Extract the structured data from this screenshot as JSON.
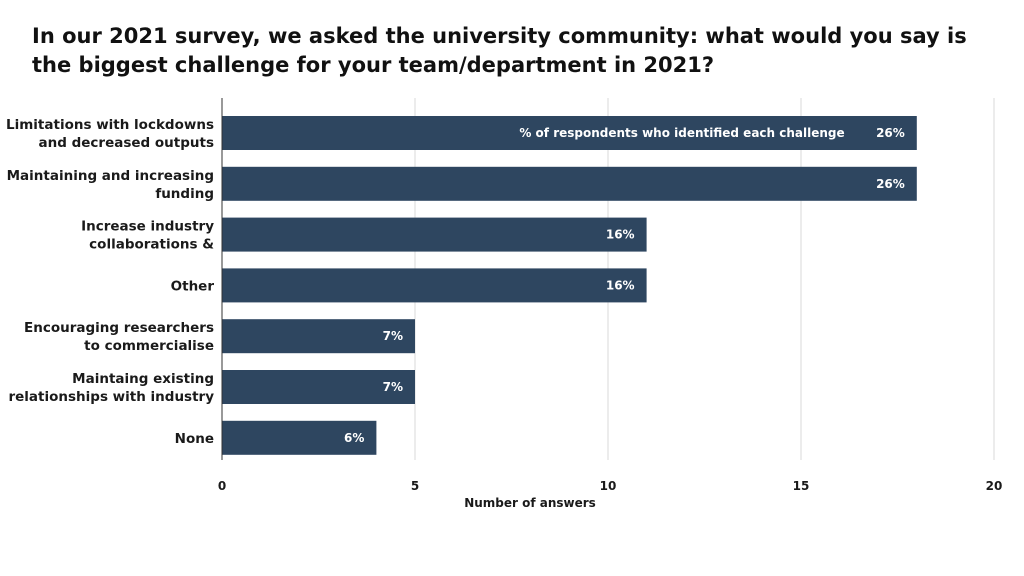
{
  "chart_data": {
    "type": "bar",
    "orientation": "horizontal",
    "title": "In our 2021 survey, we asked the university community: what would you say is the biggest challenge for your team/department in 2021?",
    "xlabel": "Number of answers",
    "ylabel": "",
    "xlim": [
      0,
      20
    ],
    "x_ticks": [
      "0",
      "5",
      "10",
      "15",
      "20"
    ],
    "grid": true,
    "categories": [
      [
        "Limitations with lockdowns",
        "and decreased outputs"
      ],
      [
        "Maintaining and increasing",
        "funding"
      ],
      [
        "Increase industry",
        "collaborations &"
      ],
      [
        "Other"
      ],
      [
        "Encouraging researchers",
        "to commercialise"
      ],
      [
        "Maintaing existing",
        "relationships with industry"
      ],
      [
        "None"
      ]
    ],
    "series": [
      {
        "name": "% of respondents who identified each challenge",
        "values": [
          18,
          18,
          11,
          11,
          5,
          5,
          4
        ],
        "data_labels": [
          "26%",
          "26%",
          "16%",
          "16%",
          "7%",
          "7%",
          "6%"
        ],
        "color": "#2e4660"
      }
    ],
    "grid_color": "#d9d9d9",
    "axis_color": "#333333"
  }
}
